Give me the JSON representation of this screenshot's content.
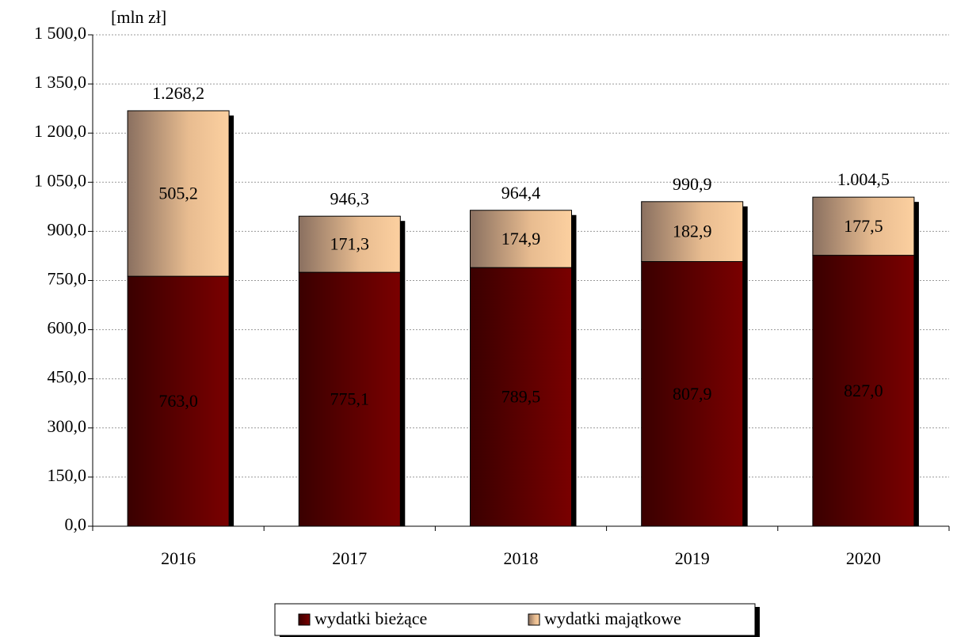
{
  "chart_data": {
    "type": "stacked-bar",
    "y_unit_label": "[mln zł]",
    "categories": [
      "2016",
      "2017",
      "2018",
      "2019",
      "2020"
    ],
    "series": [
      {
        "name": "wydatki bieżące",
        "color": "#7a0000",
        "values": [
          763.0,
          775.1,
          789.5,
          807.9,
          827.0
        ],
        "value_labels": [
          "763,0",
          "775,1",
          "789,5",
          "807,9",
          "827,0"
        ]
      },
      {
        "name": "wydatki majątkowe",
        "color": "#fcd0a0",
        "values": [
          505.2,
          171.3,
          174.9,
          182.9,
          177.5
        ],
        "value_labels": [
          "505,2",
          "171,3",
          "174,9",
          "182,9",
          "177,5"
        ]
      }
    ],
    "totals": [
      1268.2,
      946.3,
      964.4,
      990.9,
      1004.5
    ],
    "total_labels": [
      "1.268,2",
      "946,3",
      "964,4",
      "990,9",
      "1.004,5"
    ],
    "ylim": [
      0,
      1500
    ],
    "yticks": [
      {
        "value": 0,
        "label": "0,0"
      },
      {
        "value": 150,
        "label": "150,0"
      },
      {
        "value": 300,
        "label": "300,0"
      },
      {
        "value": 450,
        "label": "450,0"
      },
      {
        "value": 600,
        "label": "600,0"
      },
      {
        "value": 750,
        "label": "750,0"
      },
      {
        "value": 900,
        "label": "900,0"
      },
      {
        "value": 1050,
        "label": "1 050,0"
      },
      {
        "value": 1200,
        "label": "1 200,0"
      },
      {
        "value": 1350,
        "label": "1 350,0"
      },
      {
        "value": 1500,
        "label": "1 500,0"
      }
    ],
    "grid": true,
    "legend": "bottom"
  }
}
